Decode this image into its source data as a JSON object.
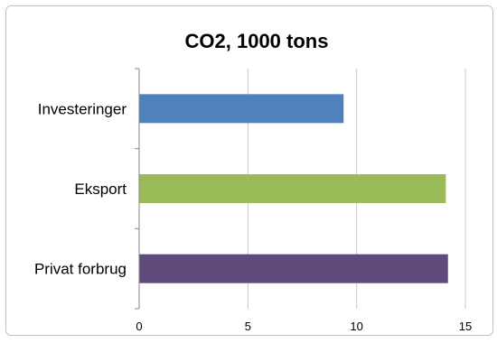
{
  "chart_data": {
    "type": "bar",
    "orientation": "horizontal",
    "title": "CO2, 1000 tons",
    "categories": [
      "Investeringer",
      "Eksport",
      "Privat forbrug"
    ],
    "values": [
      9.4,
      14.1,
      14.2
    ],
    "colors": [
      "#4F81BD",
      "#9BBB59",
      "#604A7B"
    ],
    "xlim": [
      0,
      15
    ],
    "xticks": [
      "0",
      "5",
      "10",
      "15"
    ],
    "grid": true,
    "legend": "none"
  }
}
